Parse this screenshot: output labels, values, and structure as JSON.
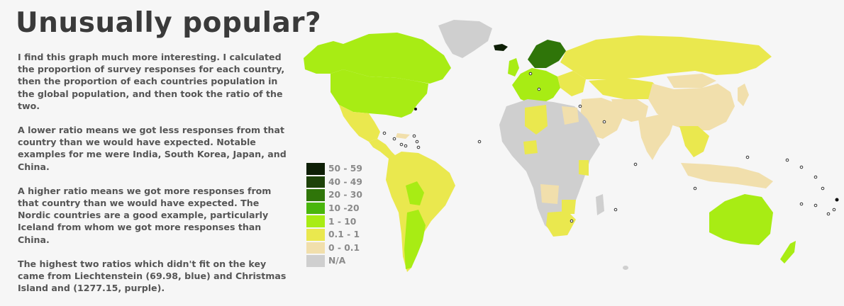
{
  "title": "Unusually popular?",
  "paragraphs": [
    "I find this graph much more interesting. I calculated the proportion of survey responses for each country, then the proportion of each countries population in the global population, and then took the ratio of the two.",
    "A lower ratio means we got less responses from that country than we would have expected. Notable examples for me were India, South Korea, Japan, and China.",
    "A higher ratio means we got more responses from that country than we would have expected. The Nordic countries are a good example, particularly Iceland from whom we got more responses than China.",
    "The highest two ratios which didn't fit on the key came from Liechtenstein (69.98, blue) and Christmas Island and (1277.15, purple)."
  ],
  "legend": [
    {
      "label": "50 - 59",
      "color": "#0e1f06"
    },
    {
      "label": "40 - 49",
      "color": "#1d4209"
    },
    {
      "label": "20 - 30",
      "color": "#2f7509"
    },
    {
      "label": "10 -20",
      "color": "#49b60c"
    },
    {
      "label": "1 - 10",
      "color": "#a8ec14"
    },
    {
      "label": "0.1 - 1",
      "color": "#eae84e"
    },
    {
      "label": "0 - 0.1",
      "color": "#f1dfac"
    },
    {
      "label": "N/A",
      "color": "#cfcfcf"
    }
  ],
  "colors": {
    "background": "#f6f6f6",
    "na": "#cfcfcf",
    "low": "#f1dfac",
    "mid": "#eae84e",
    "high": "#a8ec14",
    "higher": "#49b60c",
    "top": "#2f7509"
  }
}
